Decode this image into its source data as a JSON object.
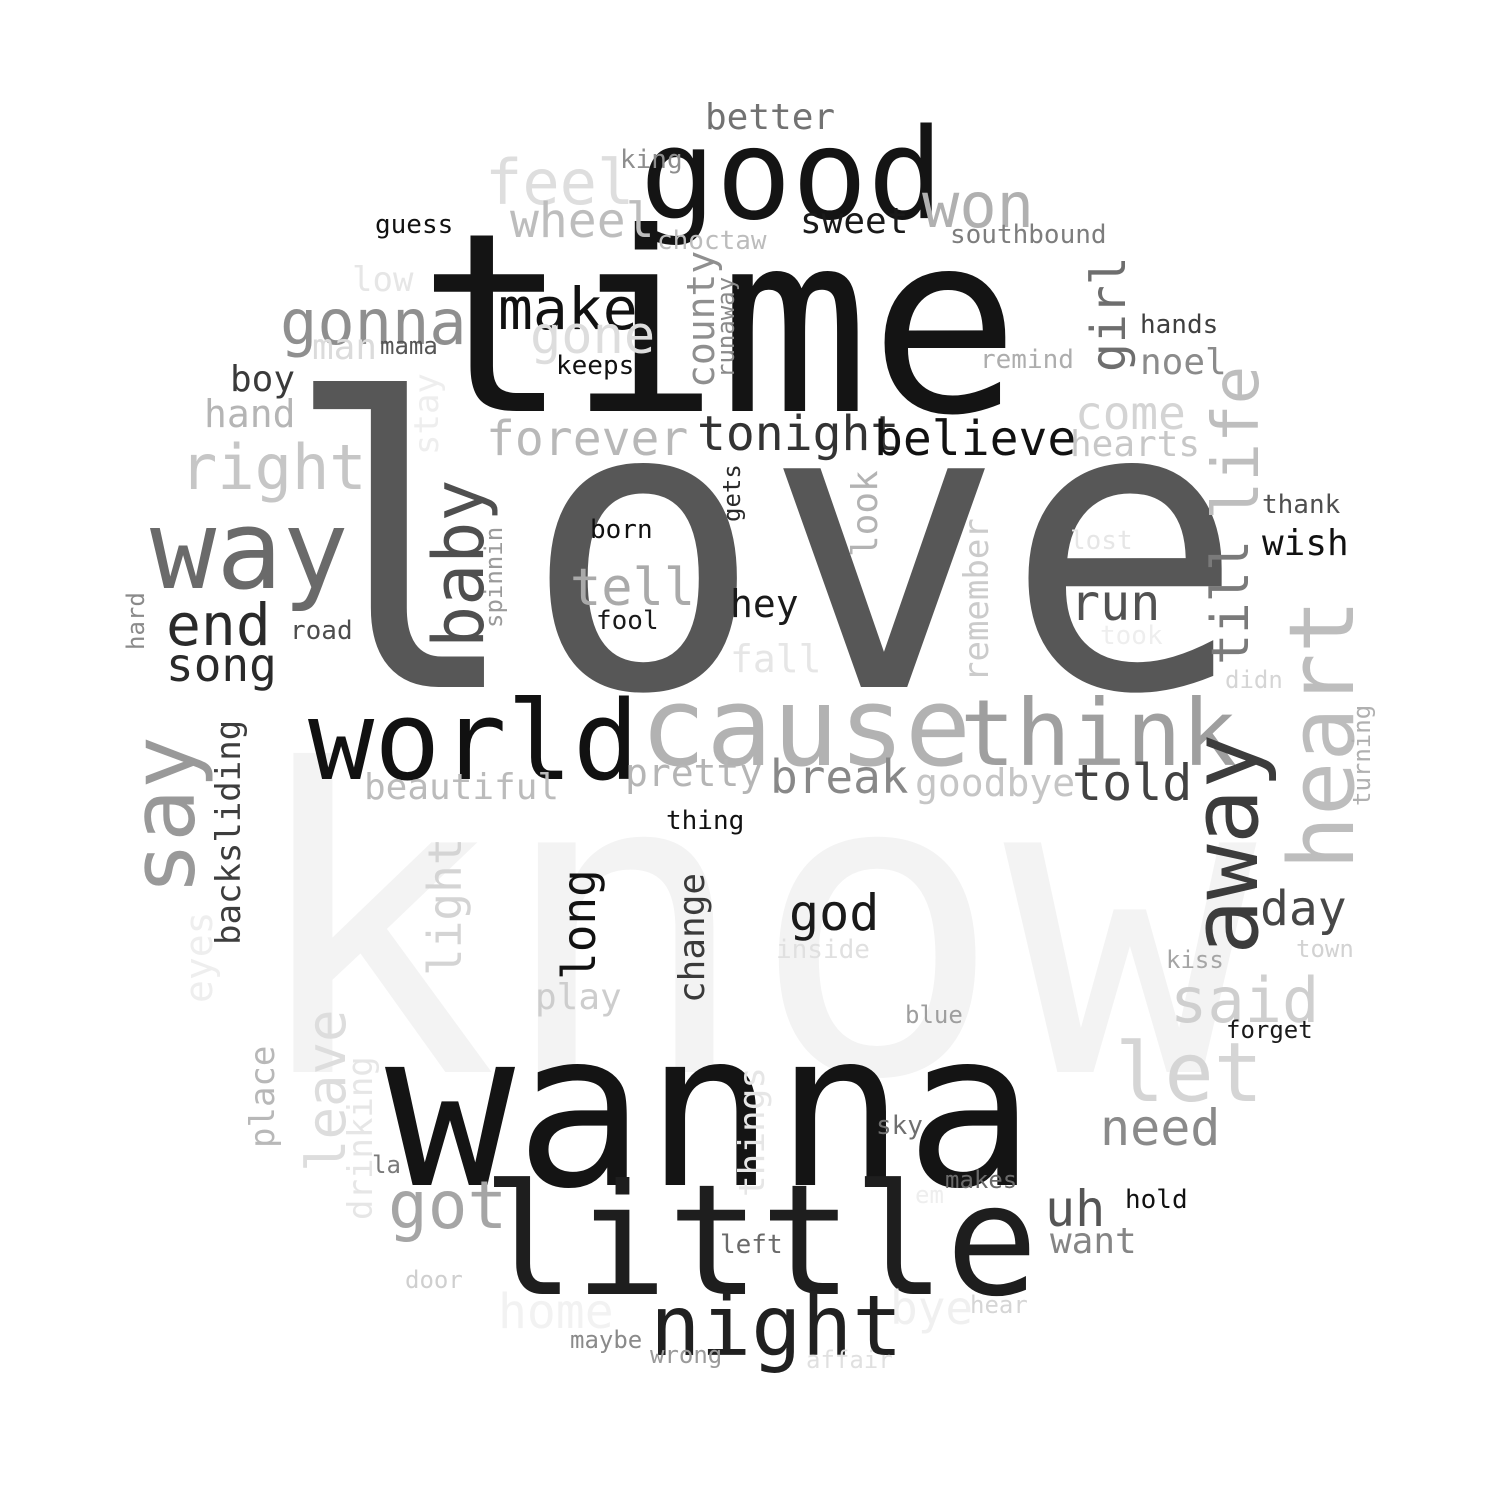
{
  "words": [
    {
      "text": "know",
      "color": "#f3f3f3"
    },
    {
      "text": "love",
      "color": "#575757"
    },
    {
      "text": "time",
      "color": "#141414"
    },
    {
      "text": "wanna",
      "color": "#141414"
    },
    {
      "text": "little",
      "color": "#1e1e1e"
    },
    {
      "text": "good",
      "color": "#141414"
    },
    {
      "text": "cause",
      "color": "#b2b2b2"
    },
    {
      "text": "world",
      "color": "#111111"
    },
    {
      "text": "think",
      "color": "#9f9f9f"
    },
    {
      "text": "way",
      "color": "#6a6a6a"
    },
    {
      "text": "say",
      "color": "#999999"
    },
    {
      "text": "away",
      "color": "#3c3c3c"
    },
    {
      "text": "heart",
      "color": "#bdbdbd"
    },
    {
      "text": "night",
      "color": "#202020"
    },
    {
      "text": "baby",
      "color": "#4f4f4f"
    },
    {
      "text": "let",
      "color": "#d5d5d5"
    },
    {
      "text": "life",
      "color": "#bebebe"
    },
    {
      "text": "till",
      "color": "#7a7a7a"
    },
    {
      "text": "make",
      "color": "#111111"
    },
    {
      "text": "gonna",
      "color": "#8f8f8f"
    },
    {
      "text": "feel",
      "color": "#dedede"
    },
    {
      "text": "won",
      "color": "#b0b0b0"
    },
    {
      "text": "right",
      "color": "#c6c6c6"
    },
    {
      "text": "end",
      "color": "#2a2a2a"
    },
    {
      "text": "got",
      "color": "#a5a5a5"
    },
    {
      "text": "said",
      "color": "#cfcfcf"
    },
    {
      "text": "wheel",
      "color": "#bdbdbd"
    },
    {
      "text": "girl",
      "color": "#6e6e6e"
    },
    {
      "text": "tonight",
      "color": "#333333"
    },
    {
      "text": "believe",
      "color": "#111111"
    },
    {
      "text": "forever",
      "color": "#b8b8b8"
    },
    {
      "text": "tell",
      "color": "#aaaaaa"
    },
    {
      "text": "gone",
      "color": "#dddddd"
    },
    {
      "text": "song",
      "color": "#2a2a2a"
    },
    {
      "text": "run",
      "color": "#525252"
    },
    {
      "text": "leave",
      "color": "#dddddd"
    },
    {
      "text": "need",
      "color": "#8a8a8a"
    },
    {
      "text": "told",
      "color": "#424242"
    },
    {
      "text": "god",
      "color": "#1a1a1a"
    },
    {
      "text": "break",
      "color": "#888888"
    },
    {
      "text": "long",
      "color": "#111111"
    },
    {
      "text": "day",
      "color": "#474747"
    },
    {
      "text": "uh",
      "color": "#555555"
    },
    {
      "text": "light",
      "color": "#d4d4d4"
    },
    {
      "text": "come",
      "color": "#d4d4d4"
    },
    {
      "text": "better",
      "color": "#727272"
    },
    {
      "text": "sweet",
      "color": "#1a1a1a"
    },
    {
      "text": "county",
      "color": "#8f8f8f"
    },
    {
      "text": "pretty",
      "color": "#b5b5b5"
    },
    {
      "text": "beautiful",
      "color": "#bbbbbb"
    },
    {
      "text": "goodbye",
      "color": "#c5c5c5"
    },
    {
      "text": "hearts",
      "color": "#c7c7c7"
    },
    {
      "text": "man",
      "color": "#dbdbdb"
    },
    {
      "text": "hand",
      "color": "#b5b5b5"
    },
    {
      "text": "boy",
      "color": "#3a3a3a"
    },
    {
      "text": "backsliding",
      "color": "#3d3d3d"
    },
    {
      "text": "change",
      "color": "#3a3a3a"
    },
    {
      "text": "remember",
      "color": "#cbcbcb"
    },
    {
      "text": "hey",
      "color": "#1a1a1a"
    },
    {
      "text": "look",
      "color": "#b3b3b3"
    },
    {
      "text": "wish",
      "color": "#111111"
    },
    {
      "text": "noel",
      "color": "#8b8b8b"
    },
    {
      "text": "play",
      "color": "#cdcdcd"
    },
    {
      "text": "want",
      "color": "#858585"
    },
    {
      "text": "bye",
      "color": "#f0f0f0"
    },
    {
      "text": "home",
      "color": "#f2f2f2"
    },
    {
      "text": "fall",
      "color": "#e6e6e6"
    },
    {
      "text": "place",
      "color": "#b8b8b8"
    },
    {
      "text": "things",
      "color": "#e6e6e6"
    },
    {
      "text": "drinking",
      "color": "#e6e6e6"
    },
    {
      "text": "eyes",
      "color": "#eeeeee"
    },
    {
      "text": "stay",
      "color": "#eeeeee"
    },
    {
      "text": "low",
      "color": "#e6e6e6"
    },
    {
      "text": "king",
      "color": "#8e8e8e"
    },
    {
      "text": "guess",
      "color": "#111111"
    },
    {
      "text": "choctaw",
      "color": "#bcbcbc"
    },
    {
      "text": "southbound",
      "color": "#7d7d7d"
    },
    {
      "text": "hands",
      "color": "#3f3f3f"
    },
    {
      "text": "remind",
      "color": "#adadad"
    },
    {
      "text": "mama",
      "color": "#555555"
    },
    {
      "text": "keeps",
      "color": "#111111"
    },
    {
      "text": "runaway",
      "color": "#8a8a8a"
    },
    {
      "text": "gets",
      "color": "#2a2a2a"
    },
    {
      "text": "born",
      "color": "#111111"
    },
    {
      "text": "spinnin",
      "color": "#9a9a9a"
    },
    {
      "text": "fool",
      "color": "#1a1a1a"
    },
    {
      "text": "road",
      "color": "#4d4d4d"
    },
    {
      "text": "hard",
      "color": "#8a8a8a"
    },
    {
      "text": "thank",
      "color": "#4f4f4f"
    },
    {
      "text": "lost",
      "color": "#e6e6e6"
    },
    {
      "text": "took",
      "color": "#eeeeee"
    },
    {
      "text": "didn",
      "color": "#d5d5d5"
    },
    {
      "text": "turning",
      "color": "#b0b0b0"
    },
    {
      "text": "thing",
      "color": "#111111"
    },
    {
      "text": "inside",
      "color": "#e0e0e0"
    },
    {
      "text": "town",
      "color": "#d2d2d2"
    },
    {
      "text": "kiss",
      "color": "#a5a5a5"
    },
    {
      "text": "blue",
      "color": "#9e9e9e"
    },
    {
      "text": "forget",
      "color": "#1a1a1a"
    },
    {
      "text": "sky",
      "color": "#6f6f6f"
    },
    {
      "text": "la",
      "color": "#7a7a7a"
    },
    {
      "text": "em",
      "color": "#eeeeee"
    },
    {
      "text": "makes",
      "color": "#6a6a6a"
    },
    {
      "text": "hold",
      "color": "#111111"
    },
    {
      "text": "left",
      "color": "#6a6a6a"
    },
    {
      "text": "door",
      "color": "#cfcfcf"
    },
    {
      "text": "hear",
      "color": "#d5d5d5"
    },
    {
      "text": "maybe",
      "color": "#8a8a8a"
    },
    {
      "text": "wrong",
      "color": "#9a9a9a"
    },
    {
      "text": "affair",
      "color": "#e0e0e0"
    }
  ]
}
